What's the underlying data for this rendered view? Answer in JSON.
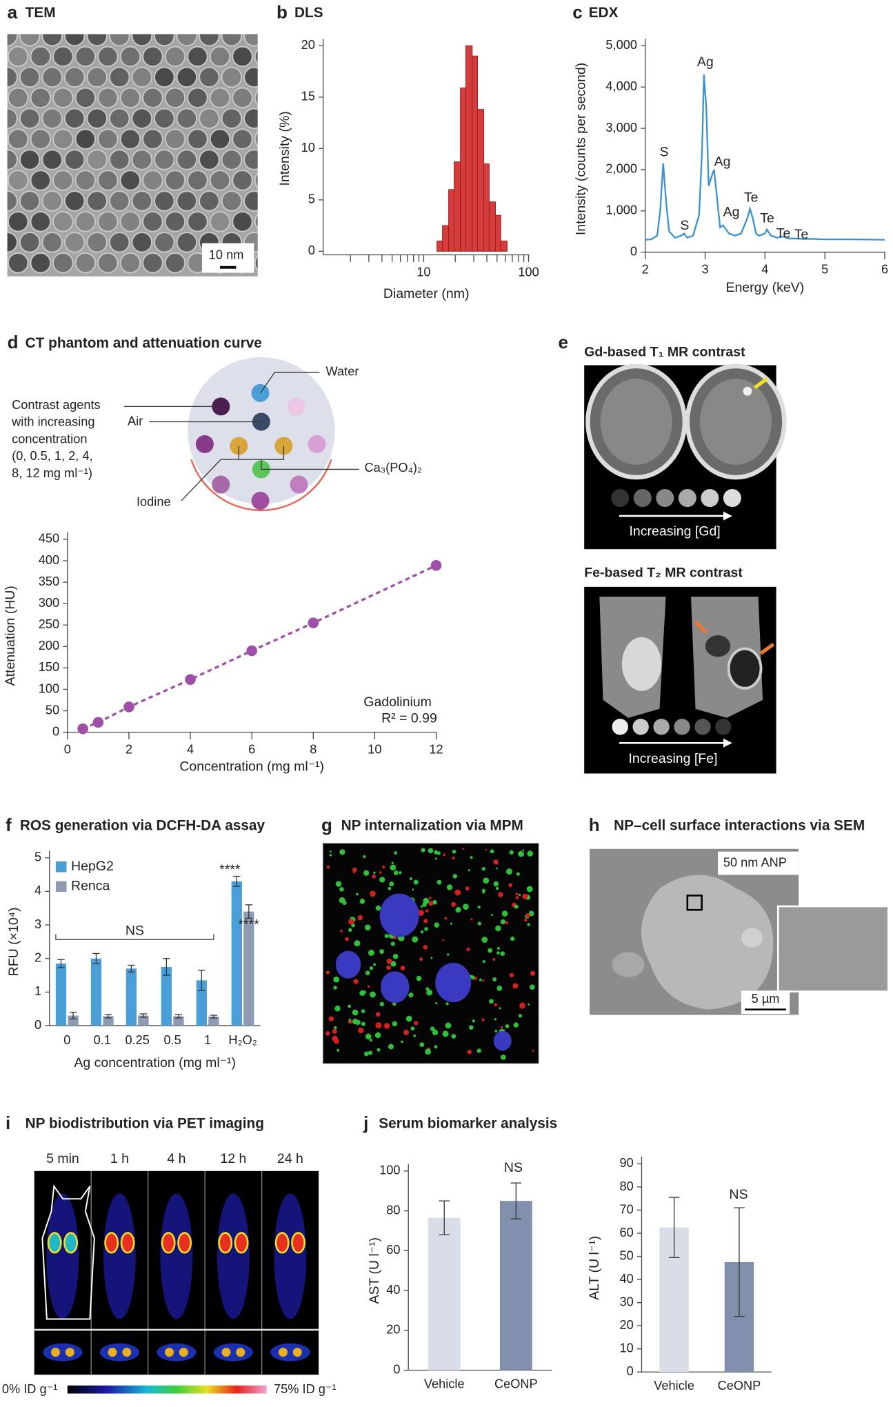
{
  "panels": {
    "a": {
      "letter": "a",
      "title": "TEM",
      "scale_bar": "10 nm"
    },
    "b": {
      "letter": "b"
    },
    "c": {
      "letter": "c"
    },
    "d": {
      "letter": "d",
      "water": "Water",
      "air": "Air",
      "contrast_agents": [
        "Contrast agents",
        "with increasing",
        "concentration",
        "(0, 0.5, 1, 2, 4,",
        "8, 12 mg ml⁻¹)"
      ],
      "iodine": "Iodine",
      "calcium": "Ca₃(PO₄)₂"
    },
    "e": {
      "letter": "e",
      "gd_title": "Gd-based T₁ MR contrast",
      "gd_label": "Increasing [Gd]",
      "fe_title": "Fe-based T₂ MR contrast",
      "fe_label": "Increasing [Fe]"
    },
    "f": {
      "letter": "f"
    },
    "g": {
      "letter": "g",
      "title": "NP internalization via MPM"
    },
    "h": {
      "letter": "h",
      "title": "NP–cell surface interactions via SEM",
      "inset_label": "50 nm ANP",
      "scale_bar": "5 µm"
    },
    "i": {
      "letter": "i",
      "title": "NP biodistribution via PET imaging",
      "times": [
        "5 min",
        "1 h",
        "4 h",
        "12 h",
        "24 h"
      ],
      "scale_min": "0% ID g⁻¹",
      "scale_max": "75% ID g⁻¹"
    },
    "j": {
      "letter": "j",
      "title": "Serum biomarker analysis"
    }
  },
  "chart_data": [
    {
      "type": "histogram",
      "title": "DLS",
      "bins": [
        13.4,
        15.1,
        17.3,
        19.5,
        22.4,
        25.2,
        29.0,
        32.6,
        37.4,
        42.1,
        48.3,
        54.3,
        62.4
      ],
      "values": [
        1,
        2.5,
        6,
        8.7,
        15.9,
        20,
        19,
        13.8,
        8.5,
        4.8,
        3.5,
        1
      ],
      "color": "#d63c3c",
      "xscale": "log",
      "xlim": [
        1.1,
        102
      ],
      "xticks": [
        10,
        100
      ],
      "minor_xticks": [
        2,
        3,
        4,
        5,
        6,
        7,
        8,
        9,
        20,
        30,
        40,
        50,
        60,
        70,
        80,
        90
      ],
      "ylim": [
        0,
        20
      ],
      "yticks": [
        0,
        5,
        10,
        15,
        20
      ],
      "xlabel": "Diameter (nm)",
      "ylabel": "Intensity (%)"
    },
    {
      "type": "line",
      "title": "EDX",
      "color": "#3d93d0",
      "x": [
        2.0,
        2.1,
        2.2,
        2.25,
        2.3,
        2.35,
        2.4,
        2.5,
        2.6,
        2.65,
        2.7,
        2.8,
        2.9,
        2.95,
        2.98,
        3.02,
        3.06,
        3.1,
        3.15,
        3.2,
        3.25,
        3.3,
        3.35,
        3.4,
        3.5,
        3.6,
        3.7,
        3.75,
        3.8,
        3.85,
        3.9,
        4.0,
        4.03,
        4.1,
        4.2,
        4.3,
        4.4,
        4.5,
        4.6,
        4.8,
        5.0,
        5.5,
        6.0
      ],
      "values": [
        300,
        310,
        400,
        1000,
        2150,
        1200,
        500,
        350,
        400,
        450,
        350,
        400,
        900,
        2500,
        4300,
        3500,
        1600,
        1800,
        2000,
        1300,
        600,
        650,
        550,
        450,
        400,
        450,
        800,
        1050,
        800,
        450,
        400,
        450,
        550,
        400,
        350,
        380,
        330,
        330,
        320,
        320,
        310,
        310,
        300
      ],
      "xlim": [
        2,
        6
      ],
      "xticks": [
        2,
        3,
        4,
        5,
        6
      ],
      "ylim": [
        0,
        5000
      ],
      "yticks": [
        0,
        {
          "value": 1000,
          "label": "1,000"
        },
        {
          "value": 2000,
          "label": "2,000"
        },
        {
          "value": 3000,
          "label": "3,000"
        },
        {
          "value": 4000,
          "label": "4,000"
        },
        {
          "value": 5000,
          "label": "5,000"
        }
      ],
      "xlabel": "Energy (keV)",
      "ylabel": "Intensity (counts per second)",
      "annotations": [
        "S",
        "S",
        "Ag",
        "Ag",
        "Ag",
        "Te",
        "Te",
        "Te",
        "Te"
      ]
    },
    {
      "type": "line",
      "title": "CT phantom and attenuation curve",
      "color": "#a04fa8",
      "markers": true,
      "dashed": true,
      "x": [
        0.5,
        1,
        2,
        4,
        6,
        8,
        12
      ],
      "values": [
        8,
        23,
        59,
        123,
        190,
        255,
        389
      ],
      "xlim": [
        0,
        12
      ],
      "xticks": [
        0,
        2,
        4,
        6,
        8,
        10,
        12
      ],
      "ylim": [
        0,
        450
      ],
      "yticks": [
        0,
        50,
        100,
        150,
        200,
        250,
        300,
        350,
        400,
        450
      ],
      "xlabel": "Concentration (mg ml⁻¹)",
      "ylabel": "Attenuation (HU)",
      "annotations": [
        "Gadolinium",
        "R² = 0.99"
      ]
    },
    {
      "type": "bar",
      "title": "ROS generation via DCFH-DA assay",
      "categories": [
        "0",
        "0.1",
        "0.25",
        "0.5",
        "1",
        "H₂O₂"
      ],
      "series": [
        {
          "name": "HepG2",
          "color": "#4a9fd8",
          "values": [
            1.85,
            2.0,
            1.7,
            1.75,
            1.35,
            4.3
          ],
          "errors": [
            0.12,
            0.15,
            0.1,
            0.25,
            0.3,
            0.15
          ]
        },
        {
          "name": "Renca",
          "color": "#8f9bb3",
          "values": [
            0.3,
            0.28,
            0.3,
            0.28,
            0.27,
            3.4
          ],
          "errors": [
            0.1,
            0.05,
            0.05,
            0.05,
            0.04,
            0.2
          ]
        }
      ],
      "ylim": [
        0,
        5
      ],
      "yticks": [
        0,
        1,
        2,
        3,
        4,
        5
      ],
      "xlabel": "Ag concentration (mg ml⁻¹)",
      "ylabel": "RFU (×10⁴)",
      "annotations": [
        "NS",
        "****",
        "****"
      ]
    },
    {
      "type": "bar",
      "categories": [
        "Vehicle",
        "CeONP"
      ],
      "values": [
        76.5,
        85
      ],
      "errors": [
        8.5,
        9
      ],
      "colors": [
        "#d9dde8",
        "#8390ad"
      ],
      "ylim": [
        0,
        100
      ],
      "yticks": [
        0,
        20,
        40,
        60,
        80,
        100
      ],
      "ylabel": "AST (U l⁻¹)",
      "annotations": [
        "NS"
      ]
    },
    {
      "type": "bar",
      "categories": [
        "Vehicle",
        "CeONP"
      ],
      "values": [
        62.5,
        47.5
      ],
      "errors": [
        13,
        23.5
      ],
      "colors": [
        "#d9dde8",
        "#8390ad"
      ],
      "ylim": [
        0,
        90
      ],
      "yticks": [
        0,
        10,
        20,
        30,
        40,
        50,
        60,
        70,
        80,
        90
      ],
      "ylabel": "ALT (U l⁻¹)",
      "annotations": [
        "NS"
      ]
    }
  ]
}
